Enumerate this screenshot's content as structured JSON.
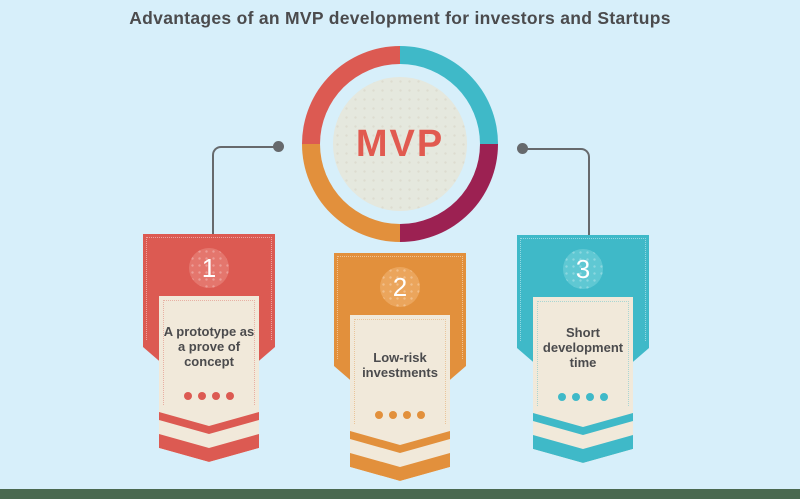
{
  "title": "Advantages of an MVP development for investors and Startups",
  "center": {
    "label": "MVP"
  },
  "ring_segments": [
    {
      "position": "top-left",
      "color": "#dc5a52"
    },
    {
      "position": "top-right",
      "color": "#3fb9c8"
    },
    {
      "position": "bottom-right",
      "color": "#9c2152"
    },
    {
      "position": "bottom-left",
      "color": "#e2903c"
    }
  ],
  "cards": [
    {
      "number": "1",
      "text": "A prototype as a prove of concept",
      "accent": "#dc5a52"
    },
    {
      "number": "2",
      "text": "Low-risk investments",
      "accent": "#e2903c"
    },
    {
      "number": "3",
      "text": "Short development time",
      "accent": "#3fb9c8"
    }
  ],
  "colors": {
    "bg": "#d7effa",
    "text": "#4b4b4d",
    "red": "#dc5a52",
    "red_light": "#e4766d",
    "orange": "#e2903c",
    "orange_light": "#eba55c",
    "teal": "#3fb9c8",
    "teal_light": "#5fc8d3",
    "maroon": "#9c2152",
    "cream": "#f1e9da",
    "beige": "#e5e8de",
    "mvp_text": "#e15a50",
    "line": "#66696c",
    "bar": "#4a6950"
  }
}
